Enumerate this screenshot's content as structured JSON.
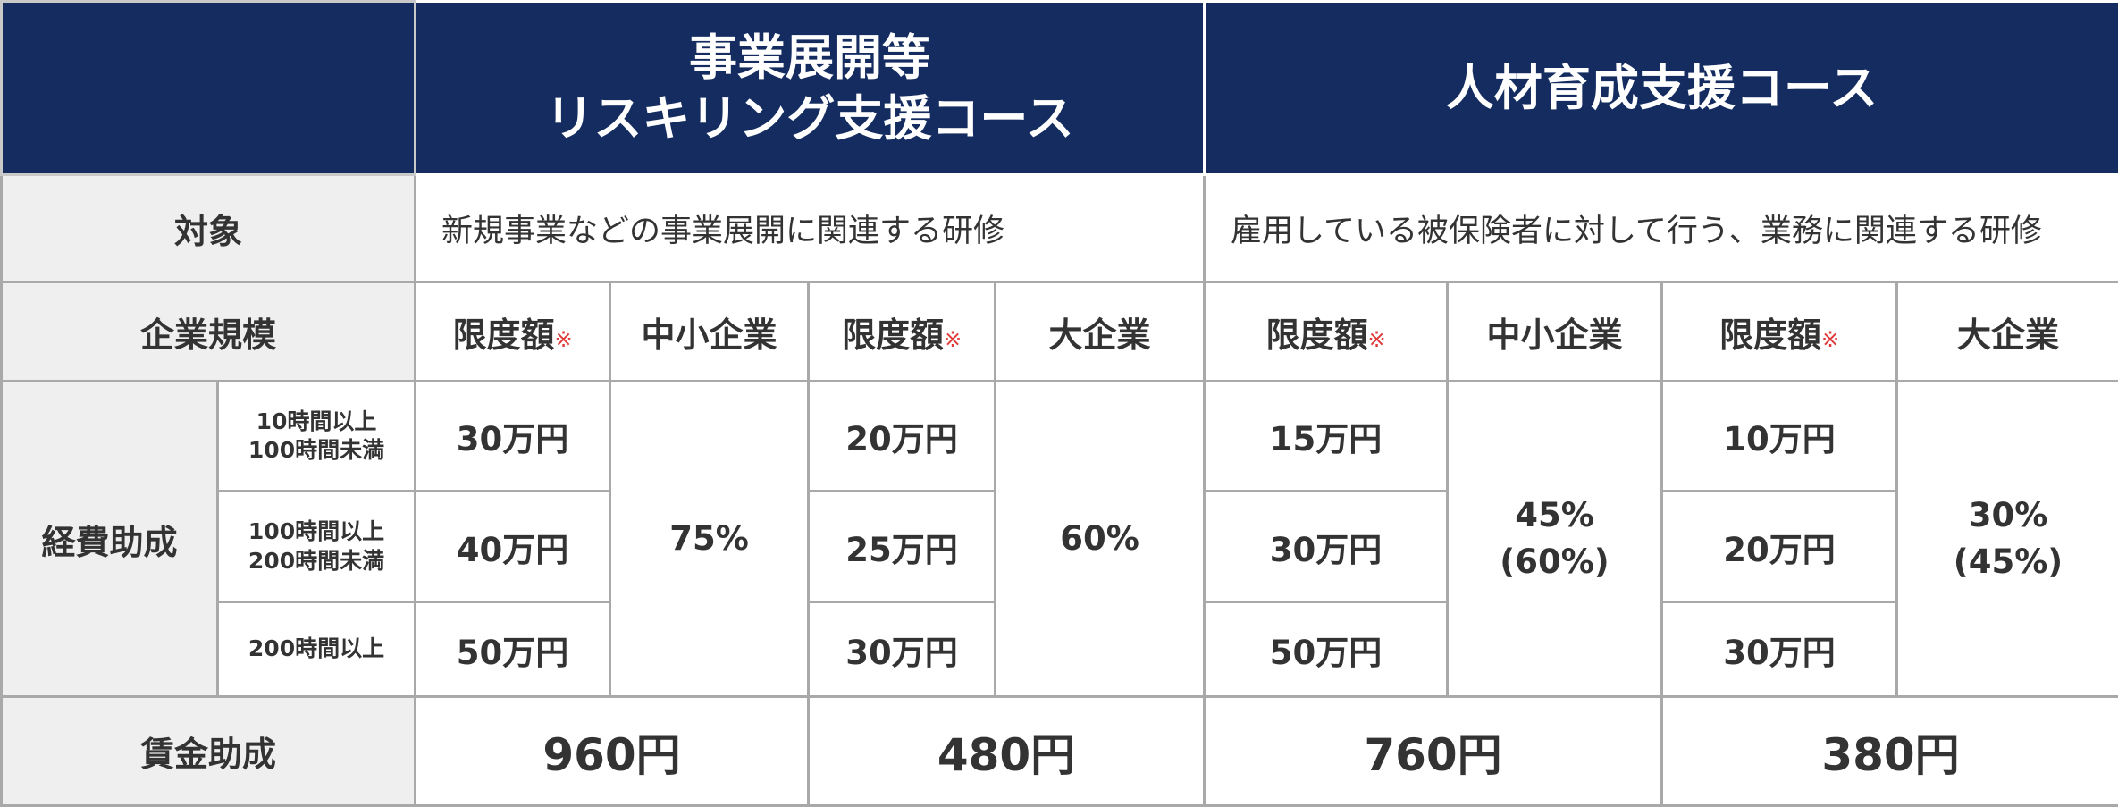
{
  "header": {
    "course1_line1": "事業展開等",
    "course1_line2": "リスキリング支援コース",
    "course2": "人材育成支援コース"
  },
  "target": {
    "label": "対象",
    "course1": "新規事業などの事業展開に関連する研修",
    "course2": "雇用している被保険者に対して行う、業務に関連する研修"
  },
  "company_size": {
    "label": "企業規模",
    "limit_label": "限度額",
    "asterisk": "※",
    "sme": "中小企業",
    "large": "大企業"
  },
  "expense": {
    "label": "経費助成",
    "hours": [
      {
        "line1": "10時間以上",
        "line2": "100時間未満"
      },
      {
        "line1": "100時間以上",
        "line2": "200時間未満"
      },
      {
        "line1": "200時間以上",
        "line2": ""
      }
    ],
    "course1_sme_limits": [
      "30万円",
      "40万円",
      "50万円"
    ],
    "course1_sme_rate": "75%",
    "course1_large_limits": [
      "20万円",
      "25万円",
      "30万円"
    ],
    "course1_large_rate": "60%",
    "course2_sme_limits": [
      "15万円",
      "30万円",
      "50万円"
    ],
    "course2_sme_rate_1": "45%",
    "course2_sme_rate_2": "(60%)",
    "course2_large_limits": [
      "10万円",
      "20万円",
      "30万円"
    ],
    "course2_large_rate_1": "30%",
    "course2_large_rate_2": "(45%)"
  },
  "wage": {
    "label": "賃金助成",
    "values": [
      "960円",
      "480円",
      "760円",
      "380円"
    ]
  }
}
